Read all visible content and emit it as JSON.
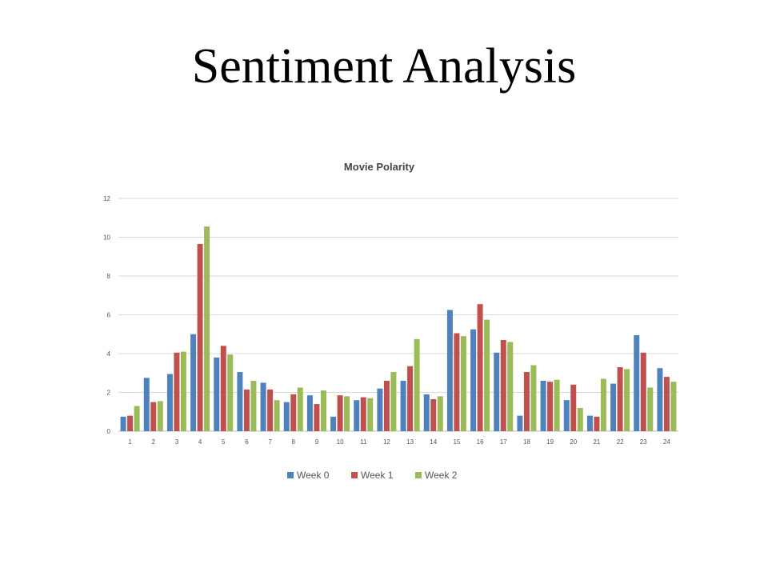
{
  "slide": {
    "title": "Sentiment Analysis"
  },
  "chart_data": {
    "type": "bar",
    "title": "Movie Polarity",
    "xlabel": "",
    "ylabel": "",
    "ylim": [
      0,
      12
    ],
    "yticks": [
      0,
      2,
      4,
      6,
      8,
      10,
      12
    ],
    "grid": true,
    "legend_position": "bottom",
    "categories": [
      "1",
      "2",
      "3",
      "4",
      "5",
      "6",
      "7",
      "8",
      "9",
      "10",
      "11",
      "12",
      "13",
      "14",
      "15",
      "16",
      "17",
      "18",
      "19",
      "20",
      "21",
      "22",
      "23",
      "24"
    ],
    "series": [
      {
        "name": "Week 0",
        "color": "#4f81bd",
        "values": [
          0.75,
          2.75,
          2.95,
          5.0,
          3.8,
          3.05,
          2.5,
          1.5,
          1.85,
          0.75,
          1.6,
          2.2,
          2.6,
          1.9,
          6.25,
          5.25,
          4.05,
          0.8,
          2.6,
          1.6,
          0.8,
          2.45,
          4.95,
          3.25
        ]
      },
      {
        "name": "Week 1",
        "color": "#c0504d",
        "values": [
          0.8,
          1.5,
          4.05,
          9.65,
          4.4,
          2.15,
          2.15,
          1.9,
          1.4,
          1.85,
          1.75,
          2.6,
          3.35,
          1.65,
          5.05,
          6.55,
          4.7,
          3.05,
          2.55,
          2.4,
          0.75,
          3.3,
          4.05,
          2.8
        ]
      },
      {
        "name": "Week 2",
        "color": "#9bbb59",
        "values": [
          1.3,
          1.55,
          4.1,
          10.55,
          3.95,
          2.6,
          1.6,
          2.25,
          2.1,
          1.8,
          1.7,
          3.05,
          4.75,
          1.8,
          4.9,
          5.75,
          4.6,
          3.4,
          2.65,
          1.2,
          2.7,
          3.2,
          2.25,
          2.55
        ]
      }
    ]
  }
}
